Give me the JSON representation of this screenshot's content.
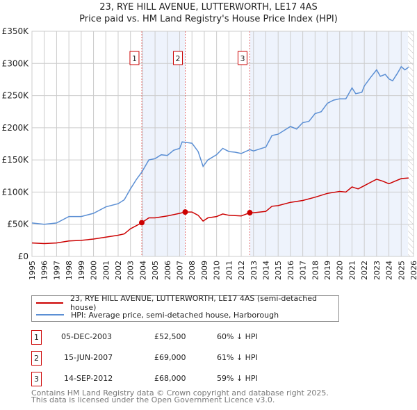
{
  "title_line1": "23, RYE HILL AVENUE, LUTTERWORTH, LE17 4AS",
  "title_line2": "Price paid vs. HM Land Registry's House Price Index (HPI)",
  "colors": {
    "property": "#cc0000",
    "hpi": "#5b8fd4",
    "shade": "#eef3fc",
    "marker_border": "#cc0000"
  },
  "chart_data": {
    "type": "line",
    "title": "Price paid vs. HM Land Registry's House Price Index (HPI)",
    "xlim": [
      1995,
      2026
    ],
    "ylim": [
      0,
      350000
    ],
    "grid": true,
    "x_ticks": [
      "1995",
      "1996",
      "1997",
      "1998",
      "1999",
      "2000",
      "2001",
      "2002",
      "2003",
      "2004",
      "2005",
      "2006",
      "2007",
      "2008",
      "2009",
      "2010",
      "2011",
      "2012",
      "2013",
      "2014",
      "2015",
      "2016",
      "2017",
      "2018",
      "2019",
      "2020",
      "2021",
      "2022",
      "2023",
      "2024",
      "2025",
      "2026"
    ],
    "y_ticks": [
      {
        "v": 0,
        "label": "£0"
      },
      {
        "v": 50000,
        "label": "£50K"
      },
      {
        "v": 100000,
        "label": "£100K"
      },
      {
        "v": 150000,
        "label": "£150K"
      },
      {
        "v": 200000,
        "label": "£200K"
      },
      {
        "v": 250000,
        "label": "£250K"
      },
      {
        "v": 300000,
        "label": "£300K"
      },
      {
        "v": 350000,
        "label": "£350K"
      }
    ],
    "series": [
      {
        "name": "23, RYE HILL AVENUE, LUTTERWORTH, LE17 4AS (semi-detached house)",
        "color": "#cc0000",
        "x": [
          1995,
          1996,
          1997,
          1998,
          1999,
          2000,
          2001,
          2002,
          2002.5,
          2003,
          2003.5,
          2003.92,
          2004.5,
          2005,
          2006,
          2007,
          2007.45,
          2008,
          2008.5,
          2008.9,
          2009.3,
          2010,
          2010.5,
          2011,
          2012,
          2012.7,
          2013,
          2014,
          2014.5,
          2015,
          2016,
          2017,
          2018,
          2019,
          2020,
          2020.5,
          2021,
          2021.5,
          2022,
          2022.5,
          2023,
          2023.5,
          2024,
          2024.5,
          2025,
          2025.6
        ],
        "y": [
          21000,
          20000,
          21000,
          24000,
          25000,
          27000,
          30000,
          33000,
          35000,
          43000,
          48000,
          52500,
          60000,
          60000,
          63000,
          67000,
          69000,
          69000,
          64000,
          55000,
          60000,
          62000,
          66000,
          64000,
          63000,
          68000,
          68000,
          70000,
          78000,
          79000,
          84000,
          87000,
          92000,
          98000,
          101000,
          100000,
          108000,
          105000,
          110000,
          115000,
          120000,
          117000,
          113000,
          117000,
          121000,
          122000
        ]
      },
      {
        "name": "HPI: Average price, semi-detached house, Harborough",
        "color": "#5b8fd4",
        "x": [
          1995,
          1996,
          1997,
          1998,
          1999,
          2000,
          2001,
          2002,
          2002.5,
          2003,
          2003.5,
          2003.92,
          2004.5,
          2005,
          2005.5,
          2006,
          2006.5,
          2007,
          2007.2,
          2008,
          2008.5,
          2008.9,
          2009.3,
          2010,
          2010.5,
          2011,
          2011.5,
          2012,
          2012.7,
          2013,
          2014,
          2014.5,
          2015,
          2016,
          2016.5,
          2017,
          2017.5,
          2018,
          2018.5,
          2019,
          2019.5,
          2020,
          2020.5,
          2021,
          2021.3,
          2021.8,
          2022,
          2022.5,
          2023,
          2023.3,
          2023.7,
          2024,
          2024.3,
          2024.7,
          2025,
          2025.3,
          2025.6
        ],
        "y": [
          52000,
          50000,
          52000,
          62000,
          62000,
          67000,
          77000,
          82000,
          88000,
          105000,
          120000,
          131000,
          150000,
          152000,
          158000,
          157000,
          165000,
          168000,
          178000,
          176000,
          163000,
          140000,
          150000,
          158000,
          168000,
          163000,
          162000,
          160000,
          166000,
          164000,
          170000,
          188000,
          190000,
          202000,
          198000,
          208000,
          210000,
          222000,
          225000,
          238000,
          243000,
          245000,
          245000,
          262000,
          253000,
          255000,
          265000,
          278000,
          290000,
          280000,
          283000,
          276000,
          273000,
          285000,
          295000,
          290000,
          294000
        ]
      }
    ],
    "sales": [
      {
        "n": "1",
        "x": 2003.92,
        "y": 52500
      },
      {
        "n": "2",
        "x": 2007.45,
        "y": 69000
      },
      {
        "n": "3",
        "x": 2012.7,
        "y": 68000
      }
    ],
    "shaded": [
      [
        2003.92,
        2007.45
      ],
      [
        2012.7,
        2026
      ]
    ],
    "hatched_from": 2025.55
  },
  "legend": {
    "property": "23, RYE HILL AVENUE, LUTTERWORTH, LE17 4AS (semi-detached house)",
    "hpi": "HPI: Average price, semi-detached house, Harborough"
  },
  "transactions": [
    {
      "n": "1",
      "date": "05-DEC-2003",
      "price": "£52,500",
      "hpi": "60% ↓ HPI"
    },
    {
      "n": "2",
      "date": "15-JUN-2007",
      "price": "£69,000",
      "hpi": "61% ↓ HPI"
    },
    {
      "n": "3",
      "date": "14-SEP-2012",
      "price": "£68,000",
      "hpi": "59% ↓ HPI"
    }
  ],
  "footer_line1": "Contains HM Land Registry data © Crown copyright and database right 2025.",
  "footer_line2": "This data is licensed under the Open Government Licence v3.0."
}
